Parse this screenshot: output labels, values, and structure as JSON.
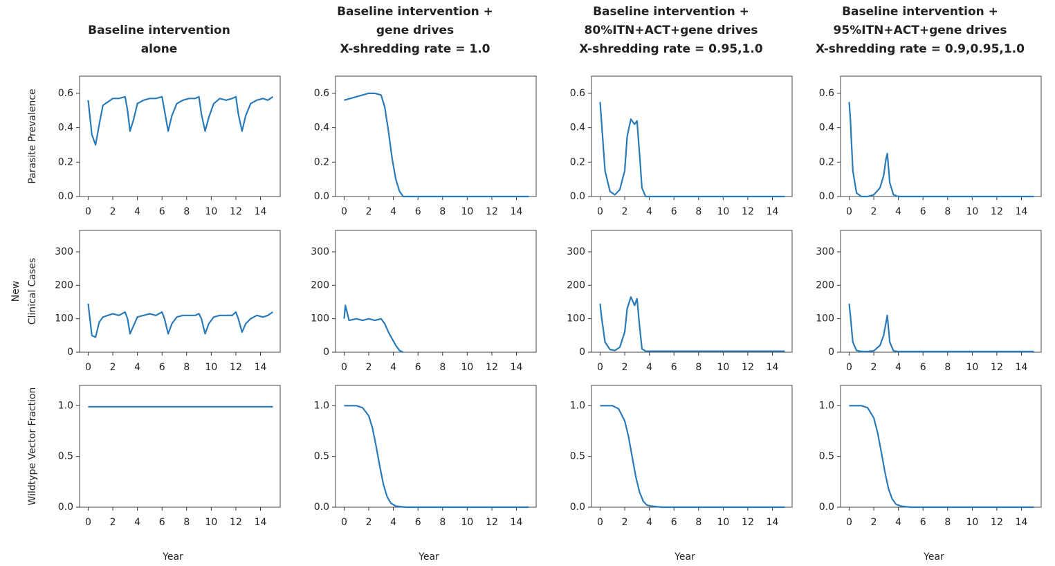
{
  "chart_data": [
    {
      "type": "line",
      "title": [
        "Baseline intervention",
        "alone"
      ],
      "ylabel": [
        "Parasite Prevalence"
      ],
      "color": "#2a7ab8",
      "x": [
        0,
        0.3,
        0.6,
        0.9,
        1.2,
        1.6,
        2,
        2.5,
        3,
        3.2,
        3.4,
        3.7,
        4,
        4.5,
        5,
        5.5,
        6,
        6.2,
        6.5,
        6.8,
        7.2,
        7.7,
        8.2,
        8.7,
        9,
        9.2,
        9.5,
        9.8,
        10.2,
        10.7,
        11.2,
        11.7,
        12,
        12.2,
        12.5,
        12.8,
        13.2,
        13.7,
        14.2,
        14.6,
        15
      ],
      "values": [
        0.56,
        0.36,
        0.3,
        0.42,
        0.53,
        0.55,
        0.57,
        0.57,
        0.58,
        0.5,
        0.38,
        0.45,
        0.54,
        0.56,
        0.57,
        0.57,
        0.58,
        0.5,
        0.38,
        0.47,
        0.54,
        0.56,
        0.57,
        0.57,
        0.58,
        0.48,
        0.38,
        0.46,
        0.54,
        0.57,
        0.56,
        0.57,
        0.58,
        0.48,
        0.38,
        0.47,
        0.54,
        0.56,
        0.57,
        0.56,
        0.58
      ],
      "xlim": [
        -0.7,
        15.6
      ],
      "xticks": [
        0,
        2,
        4,
        6,
        8,
        10,
        12,
        14
      ],
      "ylim": [
        0,
        0.7
      ],
      "yticks": [
        {
          "value": 0,
          "label": "0.0"
        },
        0.2,
        0.4,
        0.6
      ]
    },
    {
      "type": "line",
      "title": [
        "Baseline intervention +",
        "gene drives",
        "X-shredding rate = 1.0"
      ],
      "color": "#2a7ab8",
      "x": [
        0,
        0.5,
        1,
        1.5,
        2,
        2.5,
        3,
        3.3,
        3.6,
        3.9,
        4.2,
        4.5,
        4.8,
        5.5,
        15
      ],
      "values": [
        0.56,
        0.57,
        0.58,
        0.59,
        0.6,
        0.6,
        0.59,
        0.52,
        0.38,
        0.22,
        0.1,
        0.03,
        0,
        0,
        0
      ],
      "xlim": [
        -0.7,
        15.6
      ],
      "xticks": [
        0,
        2,
        4,
        6,
        8,
        10,
        12,
        14
      ],
      "ylim": [
        0,
        0.7
      ],
      "yticks": [
        {
          "value": 0,
          "label": "0.0"
        },
        0.2,
        0.4,
        0.6
      ]
    },
    {
      "type": "line",
      "title": [
        "Baseline intervention +",
        "80%ITN+ACT+gene drives",
        "X-shredding rate = 0.95,1.0"
      ],
      "color": "#2a7ab8",
      "x": [
        0,
        0.1,
        0.4,
        0.8,
        1.2,
        1.6,
        2,
        2.2,
        2.5,
        2.8,
        3,
        3.2,
        3.4,
        3.7,
        4,
        15
      ],
      "values": [
        0.55,
        0.45,
        0.15,
        0.03,
        0.01,
        0.04,
        0.15,
        0.35,
        0.45,
        0.42,
        0.44,
        0.25,
        0.05,
        0,
        0,
        0
      ],
      "xlim": [
        -0.7,
        15.6
      ],
      "xticks": [
        0,
        2,
        4,
        6,
        8,
        10,
        12,
        14
      ],
      "ylim": [
        0,
        0.7
      ],
      "yticks": [
        {
          "value": 0,
          "label": "0.0"
        },
        0.2,
        0.4,
        0.6
      ]
    },
    {
      "type": "line",
      "title": [
        "Baseline intervention +",
        "95%ITN+ACT+gene drives",
        "X-shredding rate = 0.9,0.95,1.0"
      ],
      "color": "#2a7ab8",
      "x": [
        0,
        0.1,
        0.3,
        0.6,
        1,
        1.5,
        2,
        2.5,
        2.8,
        3,
        3.1,
        3.3,
        3.6,
        4,
        15
      ],
      "values": [
        0.55,
        0.45,
        0.15,
        0.02,
        0,
        0,
        0.01,
        0.05,
        0.12,
        0.22,
        0.25,
        0.08,
        0.01,
        0,
        0
      ],
      "xlim": [
        -0.7,
        15.6
      ],
      "xticks": [
        0,
        2,
        4,
        6,
        8,
        10,
        12,
        14
      ],
      "ylim": [
        0,
        0.7
      ],
      "yticks": [
        {
          "value": 0,
          "label": "0.0"
        },
        0.2,
        0.4,
        0.6
      ]
    },
    {
      "type": "line",
      "ylabel": [
        "New",
        "Clinical Cases"
      ],
      "color": "#2a7ab8",
      "x": [
        0,
        0.3,
        0.6,
        0.9,
        1.2,
        1.6,
        2,
        2.5,
        3,
        3.2,
        3.4,
        3.7,
        4,
        4.5,
        5,
        5.5,
        6,
        6.2,
        6.5,
        6.8,
        7.2,
        7.7,
        8.2,
        8.7,
        9,
        9.2,
        9.5,
        9.8,
        10.2,
        10.7,
        11.2,
        11.7,
        12,
        12.2,
        12.5,
        12.8,
        13.2,
        13.7,
        14.2,
        14.6,
        15
      ],
      "values": [
        145,
        50,
        45,
        90,
        105,
        110,
        115,
        110,
        120,
        100,
        55,
        80,
        105,
        110,
        115,
        110,
        120,
        100,
        55,
        85,
        105,
        110,
        110,
        110,
        115,
        100,
        55,
        85,
        105,
        110,
        110,
        110,
        120,
        100,
        60,
        85,
        100,
        110,
        105,
        110,
        120
      ],
      "xlim": [
        -0.7,
        15.6
      ],
      "xticks": [
        0,
        2,
        4,
        6,
        8,
        10,
        12,
        14
      ],
      "ylim": [
        0,
        364
      ],
      "yticks": [
        0,
        100,
        200,
        300
      ]
    },
    {
      "type": "line",
      "color": "#2a7ab8",
      "x": [
        0,
        0.1,
        0.4,
        1,
        1.5,
        2,
        2.5,
        3,
        3.3,
        3.6,
        3.9,
        4.2,
        4.5,
        4.8
      ],
      "values": [
        100,
        140,
        95,
        100,
        95,
        100,
        95,
        100,
        85,
        60,
        40,
        20,
        5,
        0
      ],
      "xlim": [
        -0.7,
        15.6
      ],
      "xticks": [
        0,
        2,
        4,
        6,
        8,
        10,
        12,
        14
      ],
      "ylim": [
        0,
        364
      ],
      "yticks": [
        0,
        100,
        200,
        300
      ]
    },
    {
      "type": "line",
      "color": "#2a7ab8",
      "x": [
        0,
        0.1,
        0.4,
        0.8,
        1.2,
        1.6,
        2,
        2.2,
        2.5,
        2.8,
        3,
        3.2,
        3.4,
        3.7,
        4,
        15
      ],
      "values": [
        145,
        110,
        30,
        8,
        5,
        15,
        60,
        130,
        165,
        140,
        160,
        80,
        10,
        3,
        3,
        3
      ],
      "xlim": [
        -0.7,
        15.6
      ],
      "xticks": [
        0,
        2,
        4,
        6,
        8,
        10,
        12,
        14
      ],
      "ylim": [
        0,
        364
      ],
      "yticks": [
        0,
        100,
        200,
        300
      ]
    },
    {
      "type": "line",
      "color": "#2a7ab8",
      "x": [
        0,
        0.1,
        0.3,
        0.6,
        1,
        1.5,
        2,
        2.5,
        2.8,
        3,
        3.1,
        3.3,
        3.6,
        4,
        15
      ],
      "values": [
        145,
        110,
        30,
        5,
        2,
        2,
        4,
        20,
        50,
        90,
        110,
        30,
        4,
        2,
        2
      ],
      "xlim": [
        -0.7,
        15.6
      ],
      "xticks": [
        0,
        2,
        4,
        6,
        8,
        10,
        12,
        14
      ],
      "ylim": [
        0,
        364
      ],
      "yticks": [
        0,
        100,
        200,
        300
      ]
    },
    {
      "type": "line",
      "ylabel": [
        "Wildtype Vector Fraction"
      ],
      "xlabel": "Year",
      "color": "#2a7ab8",
      "x": [
        0,
        15
      ],
      "values": [
        0.99,
        0.99
      ],
      "xlim": [
        -0.7,
        15.6
      ],
      "xticks": [
        0,
        2,
        4,
        6,
        8,
        10,
        12,
        14
      ],
      "ylim": [
        0,
        1.2
      ],
      "yticks": [
        {
          "value": 0,
          "label": "0.0"
        },
        0.5,
        {
          "value": 1,
          "label": "1.0"
        }
      ]
    },
    {
      "type": "line",
      "xlabel": "Year",
      "color": "#2a7ab8",
      "x": [
        0,
        1,
        1.5,
        2,
        2.3,
        2.6,
        2.9,
        3.2,
        3.5,
        3.8,
        4.2,
        5,
        15
      ],
      "values": [
        1,
        1,
        0.98,
        0.9,
        0.78,
        0.6,
        0.4,
        0.22,
        0.1,
        0.04,
        0.01,
        0,
        0
      ],
      "xlim": [
        -0.7,
        15.6
      ],
      "xticks": [
        0,
        2,
        4,
        6,
        8,
        10,
        12,
        14
      ],
      "ylim": [
        0,
        1.2
      ],
      "yticks": [
        {
          "value": 0,
          "label": "0.0"
        },
        0.5,
        {
          "value": 1,
          "label": "1.0"
        }
      ]
    },
    {
      "type": "line",
      "xlabel": "Year",
      "color": "#2a7ab8",
      "x": [
        0,
        1,
        1.5,
        2,
        2.3,
        2.6,
        2.9,
        3.2,
        3.5,
        3.8,
        4.2,
        5,
        15
      ],
      "values": [
        1,
        1,
        0.97,
        0.85,
        0.7,
        0.5,
        0.3,
        0.15,
        0.06,
        0.02,
        0.01,
        0,
        0
      ],
      "xlim": [
        -0.7,
        15.6
      ],
      "xticks": [
        0,
        2,
        4,
        6,
        8,
        10,
        12,
        14
      ],
      "ylim": [
        0,
        1.2
      ],
      "yticks": [
        {
          "value": 0,
          "label": "0.0"
        },
        0.5,
        {
          "value": 1,
          "label": "1.0"
        }
      ]
    },
    {
      "type": "line",
      "xlabel": "Year",
      "color": "#2a7ab8",
      "x": [
        0,
        1,
        1.5,
        2,
        2.3,
        2.6,
        2.9,
        3.2,
        3.5,
        3.8,
        4.2,
        5,
        15
      ],
      "values": [
        1,
        1,
        0.98,
        0.88,
        0.74,
        0.55,
        0.35,
        0.18,
        0.08,
        0.03,
        0.01,
        0,
        0
      ],
      "xlim": [
        -0.7,
        15.6
      ],
      "xticks": [
        0,
        2,
        4,
        6,
        8,
        10,
        12,
        14
      ],
      "ylim": [
        0,
        1.2
      ],
      "yticks": [
        {
          "value": 0,
          "label": "0.0"
        },
        0.5,
        {
          "value": 1,
          "label": "1.0"
        }
      ]
    }
  ]
}
